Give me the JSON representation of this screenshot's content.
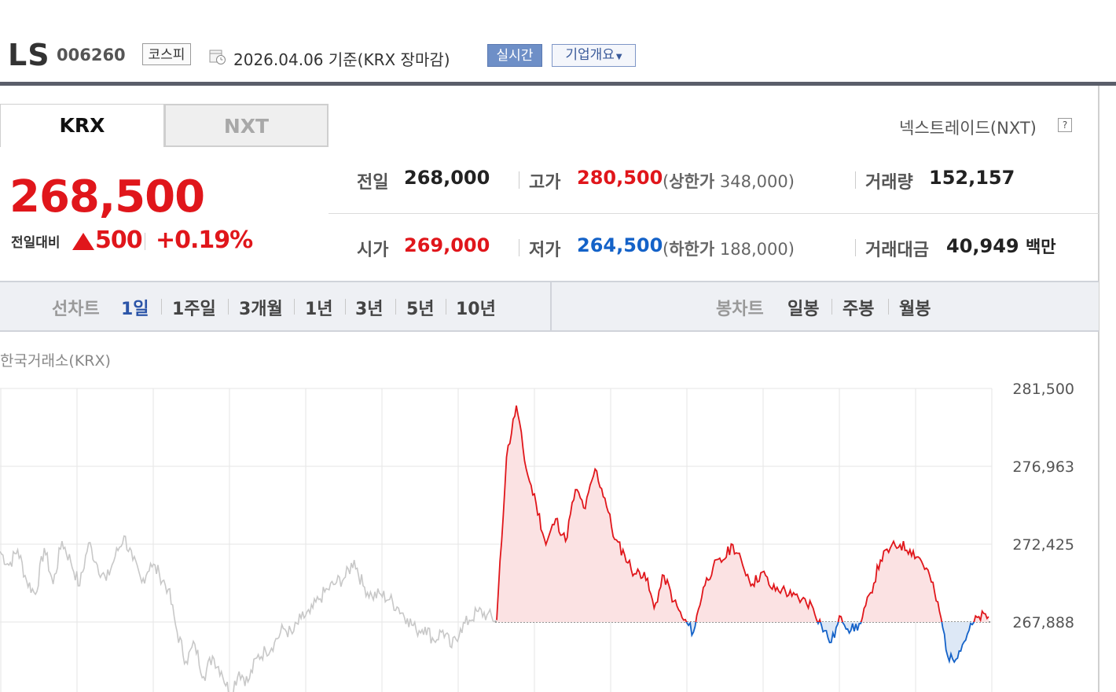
{
  "header": {
    "name": "LS",
    "code": "006260",
    "market": "코스피",
    "date_text": "2026.04.06 기준(KRX 장마감)",
    "realtime_label": "실시간",
    "company_label": "기업개요"
  },
  "tabs": [
    {
      "label": "KRX",
      "selected": true
    },
    {
      "label": "NXT",
      "selected": false
    }
  ],
  "nxt_link": "넥스트레이드(NXT)",
  "price": {
    "current": "268,500",
    "change_label": "전일대비",
    "change": "500",
    "change_pct": "+0.19%"
  },
  "stats": {
    "prev_label": "전일",
    "prev": "268,000",
    "high_label": "고가",
    "high": "280,500",
    "upper_label": "상한가",
    "upper": "348,000",
    "volume_label": "거래량",
    "volume": "152,157",
    "open_label": "시가",
    "open": "269,000",
    "low_label": "저가",
    "low": "264,500",
    "lower_label": "하한가",
    "lower": "188,000",
    "amount_label": "거래대금",
    "amount": "40,949",
    "amount_unit": "백만"
  },
  "period_bar": {
    "line_label": "선차트",
    "line_items": [
      "1일",
      "1주일",
      "3개월",
      "1년",
      "3년",
      "5년",
      "10년"
    ],
    "selected": "1일",
    "candle_label": "봉차트",
    "candle_items": [
      "일봉",
      "주봉",
      "월봉"
    ]
  },
  "chart_title": "한국거래소(KRX)",
  "colors": {
    "up": "#e0161b",
    "down": "#1462c8",
    "up_fill": "#fbe2e3",
    "down_fill": "#dde8f6",
    "prev_series": "#c8c8c8"
  },
  "chart_data": {
    "type": "line",
    "title": "한국거래소(KRX)",
    "y_ticks": [
      "281,500",
      "276,963",
      "272,425",
      "267,888"
    ],
    "ylim": [
      262500,
      281500
    ],
    "baseline": 267888,
    "grid": true,
    "series": [
      {
        "values": [
          272000,
          271200,
          272100,
          270300,
          269500,
          272200,
          270100,
          272600,
          271400,
          270000,
          272500,
          271200,
          270300,
          271700,
          272900,
          271500,
          270200,
          271300,
          270700,
          269800,
          267300,
          265600,
          266600,
          264700,
          265900,
          265000,
          263700,
          265000,
          264400,
          265800,
          266200,
          266700,
          267500,
          267200,
          268100,
          268400,
          269200,
          269800,
          270200,
          270500,
          271500,
          270000,
          269400,
          269500,
          269200,
          268700,
          268100,
          267400,
          267600,
          266800,
          267400,
          266400,
          267500,
          268000,
          268500,
          268300,
          268000
        ]
      },
      {
        "values": [
          268000,
          277500,
          280500,
          276800,
          274800,
          272400,
          273900,
          272600,
          275600,
          274500,
          276800,
          275100,
          272700,
          271800,
          270700,
          270800,
          268700,
          270600,
          269100,
          268000,
          267300,
          269900,
          271100,
          271500,
          272400,
          271200,
          270100,
          270800,
          269800,
          269800,
          269400,
          269200,
          268900,
          267700,
          266700,
          268200,
          267400,
          267800,
          269600,
          271500,
          272200,
          272400,
          272100,
          271600,
          270600,
          268500,
          265600,
          266200,
          267400,
          268200,
          268200
        ]
      }
    ]
  }
}
